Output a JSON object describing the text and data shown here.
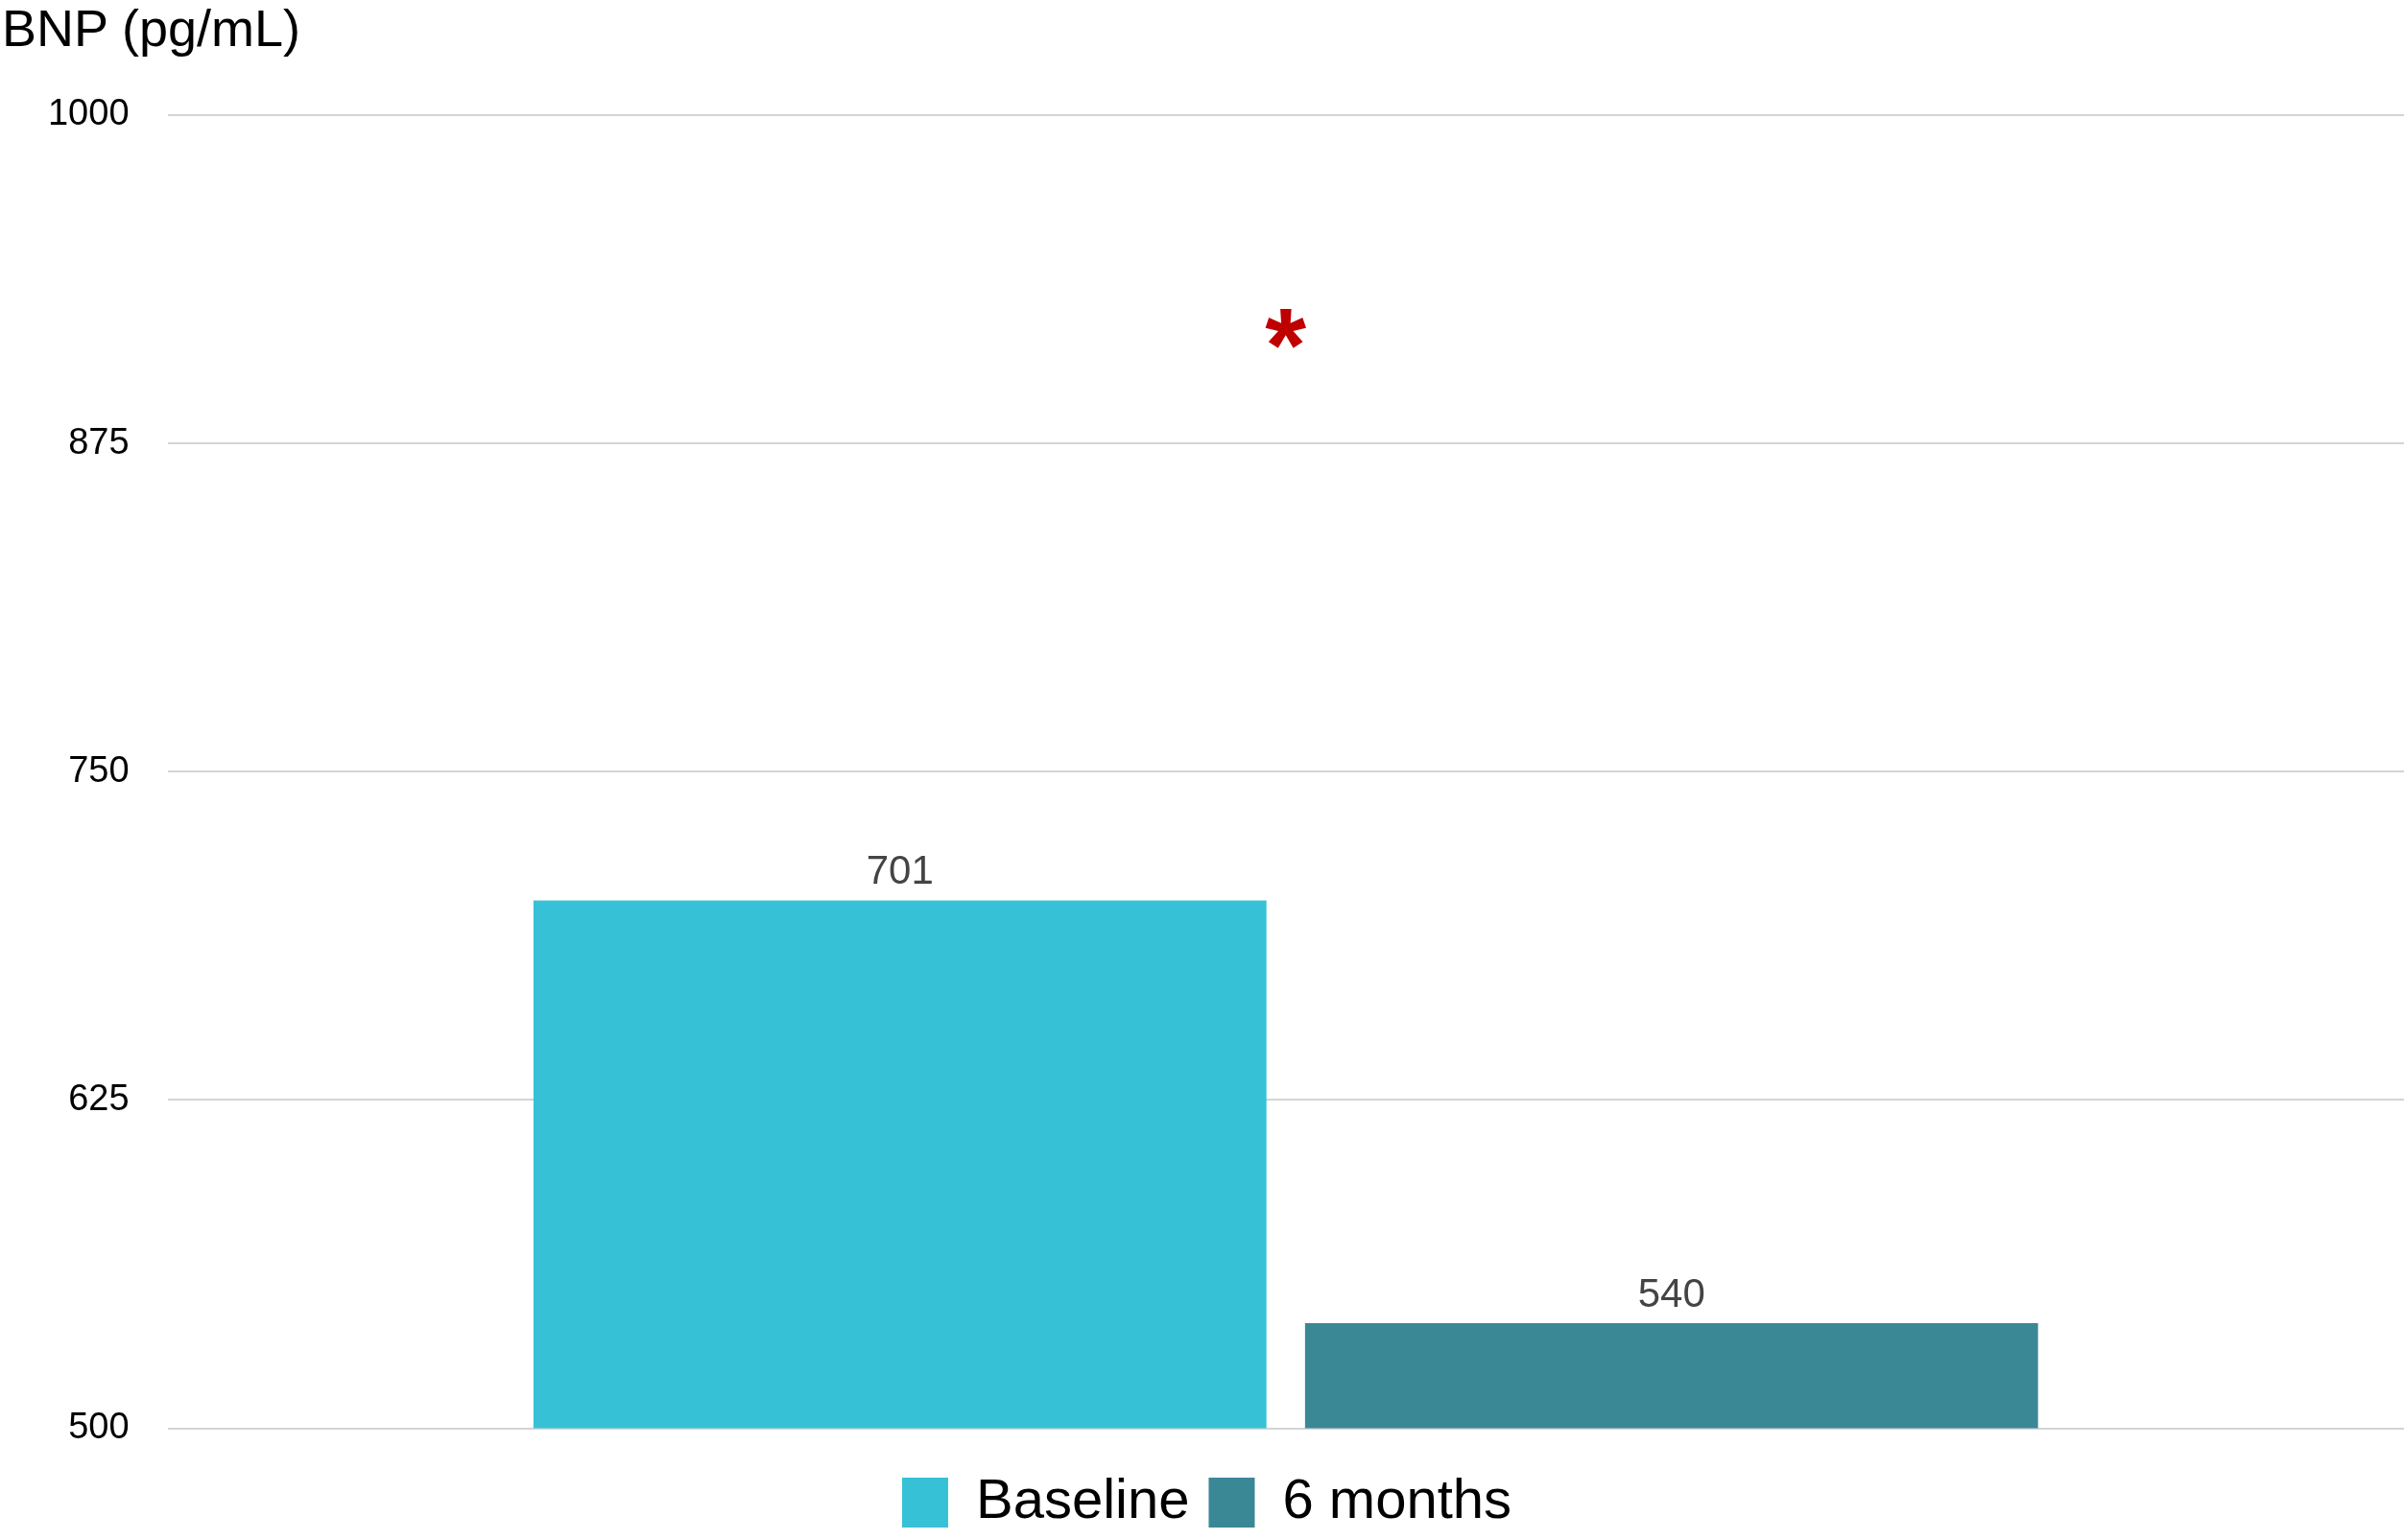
{
  "chart_data": {
    "type": "bar",
    "ylabel": "BNP (pg/mL)",
    "categories": [
      null
    ],
    "series": [
      {
        "name": "Baseline",
        "color": "#36c1d6",
        "values": [
          701
        ]
      },
      {
        "name": "6 months",
        "color": "#3a8896",
        "values": [
          540
        ]
      }
    ],
    "ylim": [
      500,
      1000
    ],
    "yticks": [
      500,
      625,
      750,
      875,
      1000
    ],
    "grid": "y",
    "legend": "bottom",
    "data_labels": true,
    "annotations": [
      "*"
    ]
  }
}
